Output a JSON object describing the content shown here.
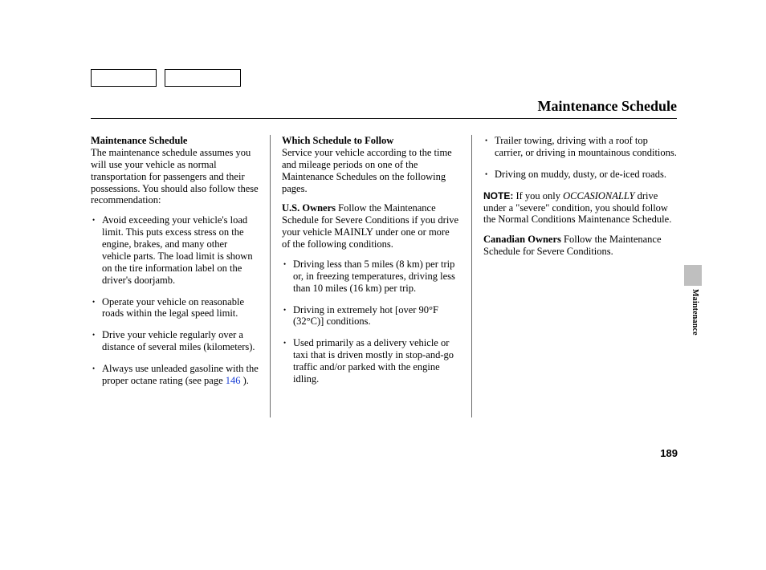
{
  "header": {
    "title": "Maintenance Schedule"
  },
  "side": {
    "label": "Maintenance"
  },
  "pageNumber": "189",
  "col1": {
    "heading": "Maintenance Schedule",
    "intro": "The maintenance schedule assumes you will use your vehicle as normal transportation for passengers and their possessions. You should also follow these recommendation:",
    "bullets": {
      "b0": "Avoid exceeding your vehicle's load limit. This puts excess stress on the engine, brakes, and many other vehicle parts. The load limit is shown on the tire information label on the driver's doorjamb.",
      "b1": "Operate your vehicle on reasonable roads within the legal speed limit.",
      "b2": "Drive your vehicle regularly over a distance of several miles (kilometers).",
      "b3a": "Always use unleaded gasoline with the proper octane rating (see page ",
      "b3link": "146",
      "b3b": " )."
    }
  },
  "col2": {
    "heading": "Which Schedule to Follow",
    "intro": "Service your vehicle according to the time and mileage periods on one of the Maintenance Schedules on the following pages.",
    "us_label": "U.S. Owners",
    "us_text": "   Follow the Maintenance Schedule for Severe Conditions if you drive your vehicle MAINLY under one or more of the following conditions.",
    "bullets": {
      "b0": "Driving less than 5 miles (8 km) per trip or, in freezing temperatures, driving less than 10 miles (16 km) per trip.",
      "b1": "Driving in extremely hot [over 90°F (32°C)] conditions.",
      "b2": "Used primarily as a delivery vehicle or taxi that is driven mostly in stop-and-go traffic and/or parked with the engine idling."
    }
  },
  "col3": {
    "bullets": {
      "b0": "Trailer towing, driving with a roof top carrier, or driving in mountainous conditions.",
      "b1": "Driving on muddy, dusty, or de-iced roads."
    },
    "note_label": "NOTE:",
    "note_a": " If you only ",
    "note_italic": "OCCASIONALLY",
    "note_b": " drive under a \"severe\" condition, you should follow the Normal Conditions Maintenance Schedule.",
    "can_label": "Canadian Owners",
    "can_text": "   Follow the Maintenance Schedule for Severe Conditions."
  }
}
